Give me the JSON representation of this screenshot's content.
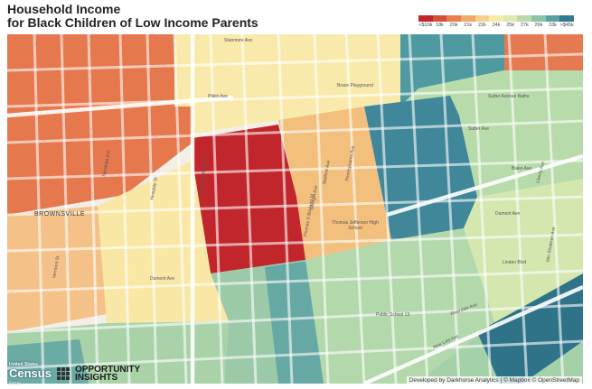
{
  "title": {
    "line1": "Household Income",
    "line2": "for Black Children of Low Income Parents"
  },
  "legend": {
    "labels": [
      "<$10k",
      "18k",
      "20k",
      "21k",
      "22k",
      "24k",
      "25k",
      "27k",
      "29k",
      "33k",
      ">$45k"
    ],
    "colors": [
      "#c0262c",
      "#d4503a",
      "#e87e4f",
      "#f1a96b",
      "#f6d08e",
      "#f8ebaa",
      "#dfeaaf",
      "#b9dbab",
      "#8cc3a6",
      "#5aa1a1",
      "#2f7c8f"
    ]
  },
  "map": {
    "neighborhood_label": "BROWNSVILLE",
    "street_labels": {
      "stanmore": "Stanmore Ave",
      "pitkin": "Pitkin Ave",
      "brace": "Brace Playground",
      "sutter": "Sutter Ave",
      "sutter_baths": "Sutter Avenue Baths",
      "blake": "Blake Ave",
      "dumont": "Dumont Ave",
      "dumont2": "Dumont Ave",
      "pennsylvania": "Pennsylvania Ave",
      "stafford": "Stafford Ave",
      "georgia": "Georgia Ave",
      "tjhs": "Thomas Jefferson High School",
      "hinsdale": "Hinsdale St",
      "vermont": "Vermont St",
      "new_lots": "New Lots Ave",
      "public_school": "Public School 13",
      "riverdale": "Riverdale Ave",
      "linden": "Linden Blvd",
      "van_sinderen": "Van Sinderen Ave",
      "mother_gaston": "Mother Gaston Blvd",
      "saratoga": "Saratoga Ave",
      "thomas_boyland": "Thomas S Boyland St",
      "liberty": "Liberty Ave"
    }
  },
  "logos": {
    "census_small": "United States",
    "census_big": "Census",
    "census_bureau": "Bureau",
    "oi_line1": "OPPORTUNITY",
    "oi_line2": "INSIGHTS"
  },
  "attribution": "Developed by Darkhorse Analytics | © Mapbox © OpenStreetMap"
}
